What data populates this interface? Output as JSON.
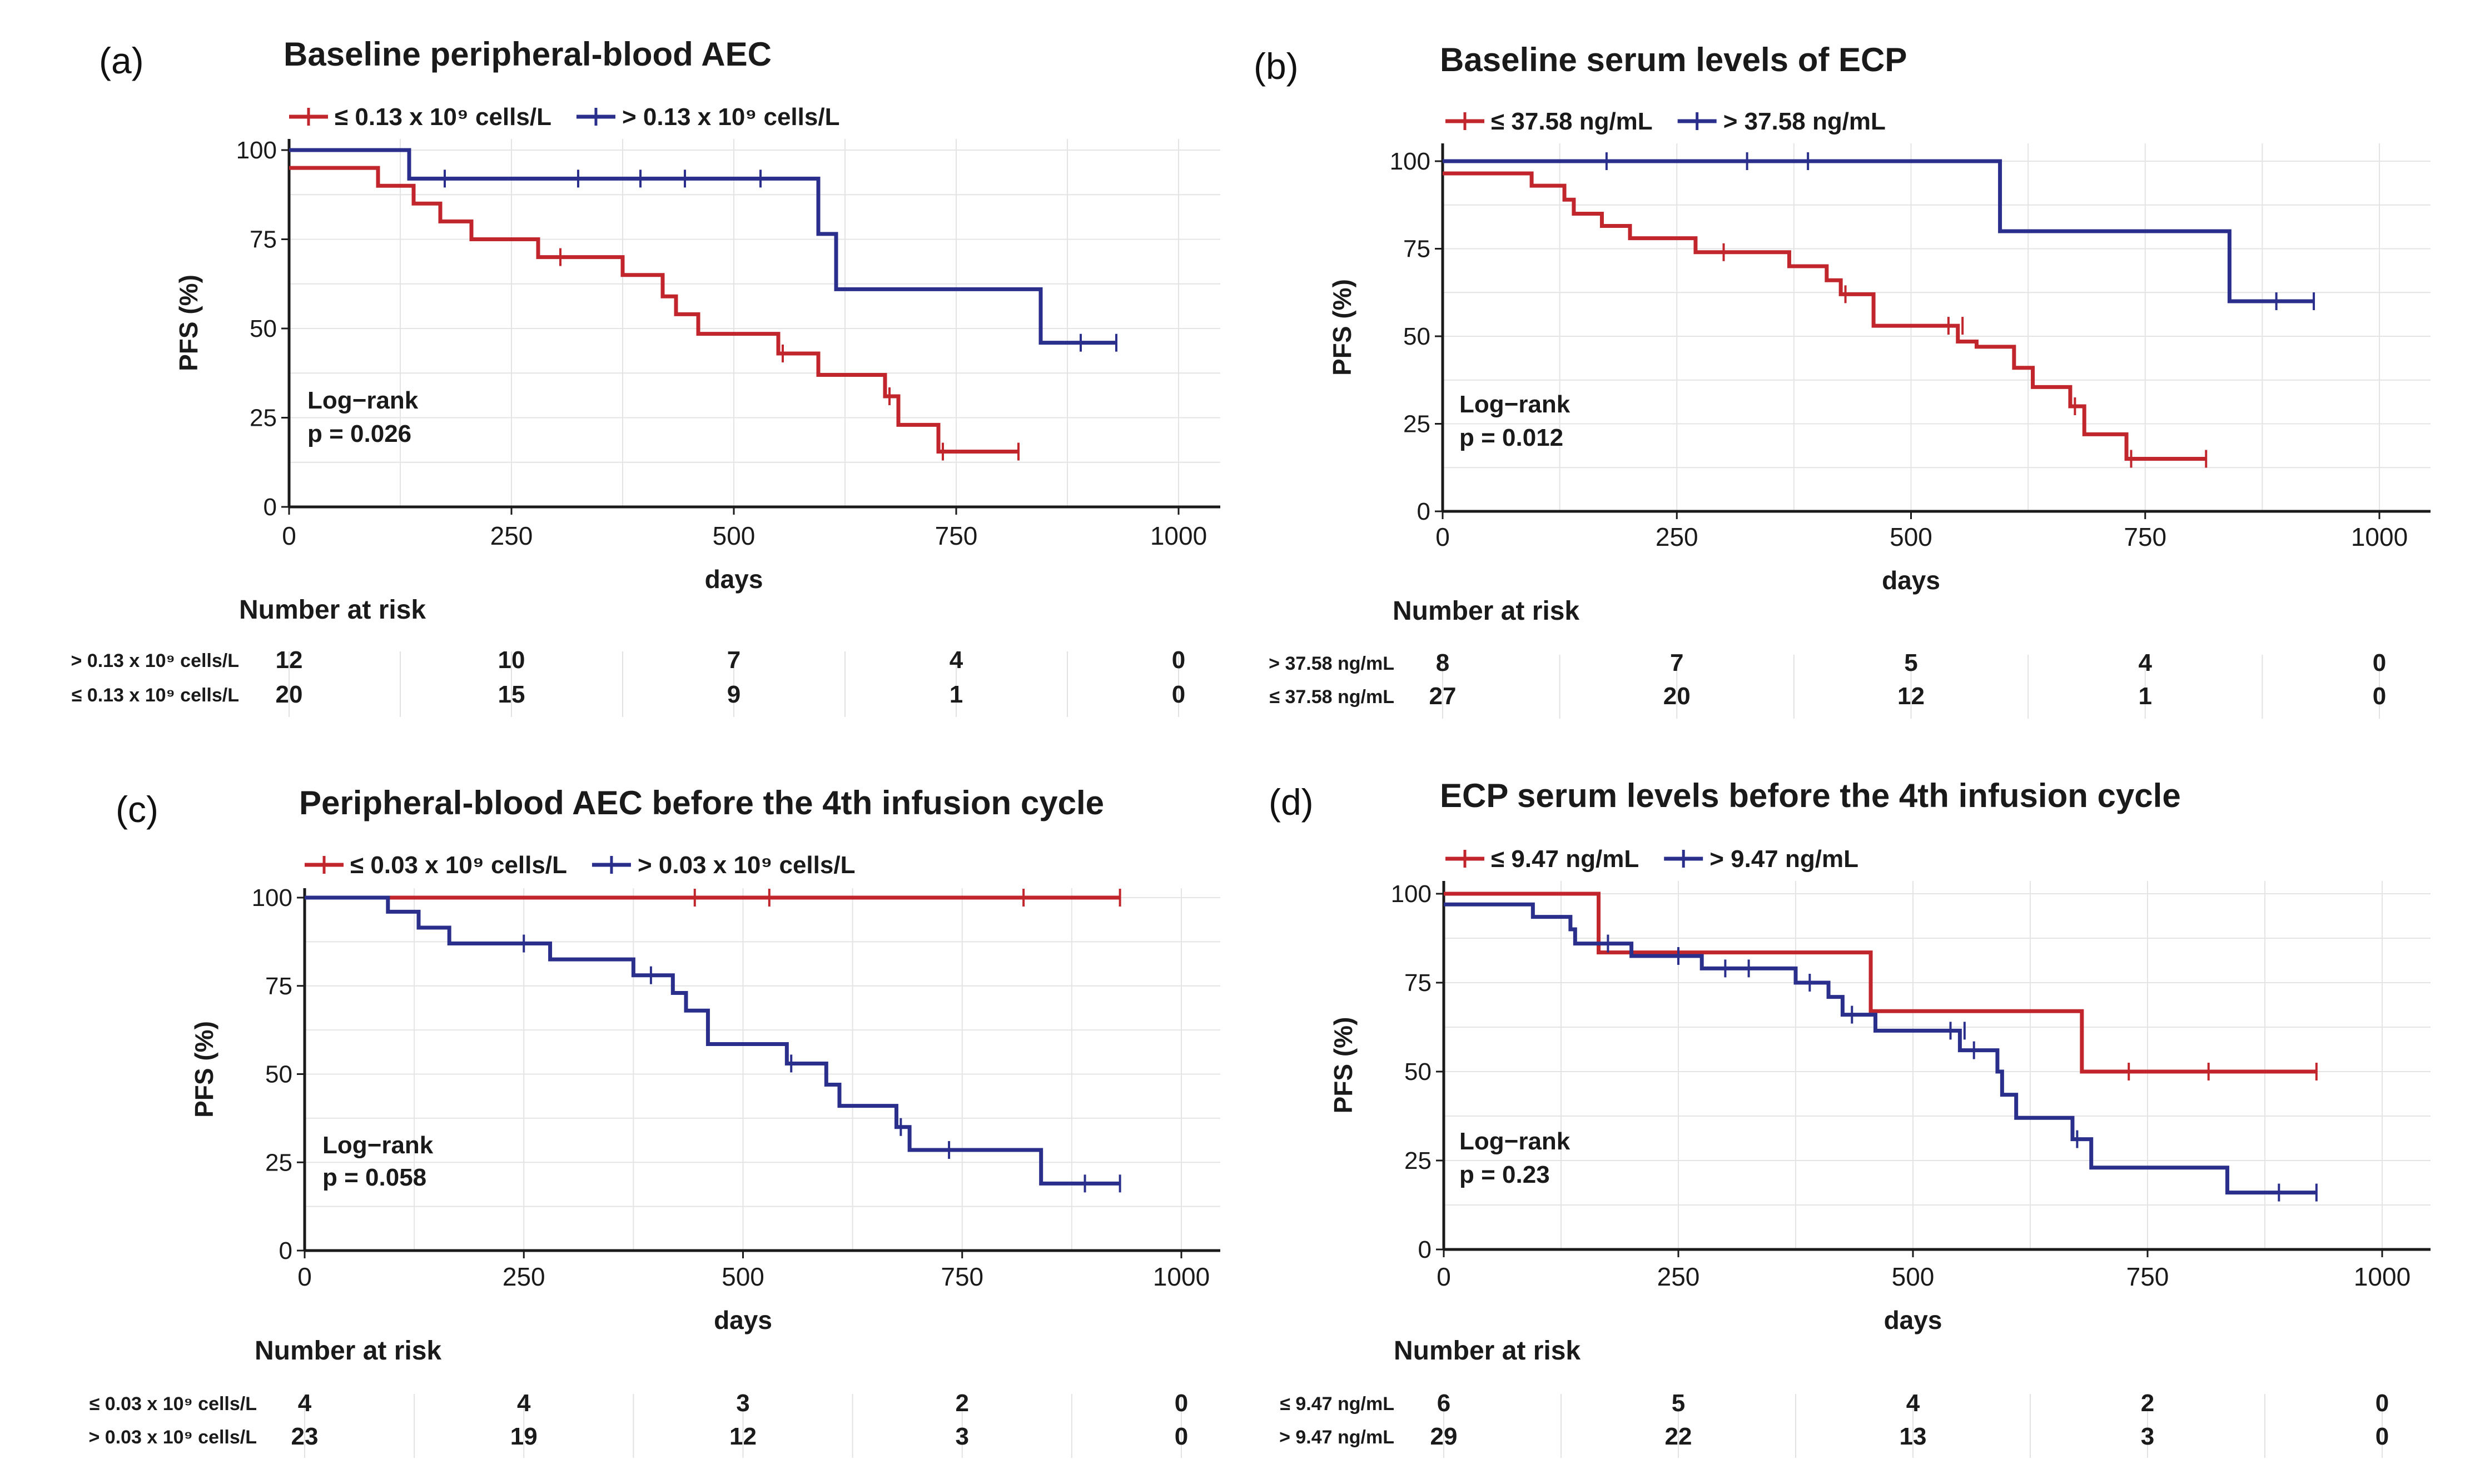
{
  "colors": {
    "red": "#c0262c",
    "blue": "#2b2f8c",
    "axis": "#1a1a1a",
    "grid": "#e4e4e4"
  },
  "chart_data": [
    {
      "type": "line",
      "label": "(a)",
      "title": "Baseline peripheral-blood AEC",
      "ylabel": "PFS (%)",
      "xlabel": "days",
      "xlim": [
        0,
        1050
      ],
      "ylim": [
        0,
        100
      ],
      "xticks": [
        0,
        250,
        500,
        750,
        1000
      ],
      "yticks": [
        0,
        25,
        50,
        75,
        100
      ],
      "ytick_labels": [
        "0",
        "25",
        "50",
        "75",
        "100"
      ],
      "xtick_labels": [
        "0",
        "250",
        "500",
        "750",
        "1000"
      ],
      "annotation": [
        "Log−rank",
        "p = 0.026"
      ],
      "risk_title": "Number at risk",
      "risk_times": [
        0,
        250,
        500,
        750,
        1000
      ],
      "series": [
        {
          "name": "≤ 0.13 x 10⁹ cells/L",
          "color": "#c0262c",
          "steps": [
            [
              0,
              95
            ],
            [
              100,
              90
            ],
            [
              140,
              85
            ],
            [
              170,
              80
            ],
            [
              205,
              75
            ],
            [
              280,
              70
            ],
            [
              375,
              65
            ],
            [
              420,
              59
            ],
            [
              435,
              54
            ],
            [
              460,
              48.5
            ],
            [
              550,
              43
            ],
            [
              595,
              37
            ],
            [
              670,
              31
            ],
            [
              685,
              23
            ],
            [
              730,
              15.5
            ],
            [
              820,
              15.5
            ]
          ],
          "censors": [
            [
              305,
              70
            ],
            [
              555,
              43
            ],
            [
              675,
              31
            ],
            [
              735,
              15.5
            ],
            [
              820,
              15.5
            ]
          ]
        },
        {
          "name": "> 0.13 x 10⁹ cells/L",
          "color": "#2b2f8c",
          "steps": [
            [
              0,
              100
            ],
            [
              135,
              92
            ],
            [
              595,
              76.5
            ],
            [
              615,
              61
            ],
            [
              845,
              46
            ],
            [
              930,
              46
            ]
          ],
          "censors": [
            [
              175,
              92
            ],
            [
              325,
              92
            ],
            [
              395,
              92
            ],
            [
              445,
              92
            ],
            [
              530,
              92
            ],
            [
              890,
              46
            ],
            [
              930,
              46
            ]
          ]
        }
      ],
      "risk_rows": [
        {
          "label": "> 0.13 x 10⁹ cells/L",
          "values": [
            "12",
            "10",
            "7",
            "4",
            "0"
          ]
        },
        {
          "label": "≤ 0.13 x 10⁹ cells/L",
          "values": [
            "20",
            "15",
            "9",
            "1",
            "0"
          ]
        }
      ]
    },
    {
      "type": "line",
      "label": "(b)",
      "title": "Baseline serum levels of ECP",
      "ylabel": "PFS (%)",
      "xlabel": "days",
      "xlim": [
        0,
        1050
      ],
      "ylim": [
        0,
        100
      ],
      "xticks": [
        0,
        250,
        500,
        750,
        1000
      ],
      "yticks": [
        0,
        25,
        50,
        75,
        100
      ],
      "ytick_labels": [
        "0",
        "25",
        "50",
        "75",
        "100"
      ],
      "xtick_labels": [
        "0",
        "250",
        "500",
        "750",
        "1000"
      ],
      "annotation": [
        "Log−rank",
        "p = 0.012"
      ],
      "risk_title": "Number at risk",
      "risk_times": [
        0,
        250,
        500,
        750,
        1000
      ],
      "series": [
        {
          "name": "≤ 37.58 ng/mL",
          "color": "#c0262c",
          "steps": [
            [
              0,
              96.5
            ],
            [
              95,
              93
            ],
            [
              130,
              89
            ],
            [
              140,
              85
            ],
            [
              170,
              81.5
            ],
            [
              200,
              78
            ],
            [
              270,
              74
            ],
            [
              370,
              70
            ],
            [
              410,
              66
            ],
            [
              425,
              62
            ],
            [
              460,
              53
            ],
            [
              550,
              48.5
            ],
            [
              570,
              47
            ],
            [
              610,
              41
            ],
            [
              630,
              35.5
            ],
            [
              670,
              30
            ],
            [
              685,
              22
            ],
            [
              730,
              15
            ],
            [
              815,
              15
            ]
          ],
          "censors": [
            [
              300,
              74
            ],
            [
              430,
              62
            ],
            [
              540,
              53
            ],
            [
              555,
              53
            ],
            [
              675,
              30
            ],
            [
              735,
              15
            ],
            [
              815,
              15
            ]
          ]
        },
        {
          "name": "> 37.58 ng/mL",
          "color": "#2b2f8c",
          "steps": [
            [
              0,
              100
            ],
            [
              595,
              80
            ],
            [
              840,
              60
            ],
            [
              930,
              60
            ]
          ],
          "censors": [
            [
              175,
              100
            ],
            [
              325,
              100
            ],
            [
              390,
              100
            ],
            [
              890,
              60
            ],
            [
              930,
              60
            ]
          ]
        }
      ],
      "risk_rows": [
        {
          "label": "> 37.58 ng/mL",
          "values": [
            "8",
            "7",
            "5",
            "4",
            "0"
          ]
        },
        {
          "label": "≤ 37.58 ng/mL",
          "values": [
            "27",
            "20",
            "12",
            "1",
            "0"
          ]
        }
      ]
    },
    {
      "type": "line",
      "label": "(c)",
      "title": "Peripheral-blood AEC before the 4th infusion cycle",
      "ylabel": "PFS (%)",
      "xlabel": "days",
      "xlim": [
        0,
        1050
      ],
      "ylim": [
        0,
        100
      ],
      "xticks": [
        0,
        250,
        500,
        750,
        1000
      ],
      "yticks": [
        0,
        25,
        50,
        75,
        100
      ],
      "ytick_labels": [
        "0",
        "25",
        "50",
        "75",
        "100"
      ],
      "xtick_labels": [
        "0",
        "250",
        "500",
        "750",
        "1000"
      ],
      "annotation": [
        "Log−rank",
        "p = 0.058"
      ],
      "risk_title": "Number at risk",
      "risk_times": [
        0,
        250,
        500,
        750,
        1000
      ],
      "series": [
        {
          "name": "≤ 0.03 x 10⁹ cells/L",
          "color": "#c0262c",
          "steps": [
            [
              0,
              100
            ],
            [
              930,
              100
            ]
          ],
          "censors": [
            [
              445,
              100
            ],
            [
              530,
              100
            ],
            [
              820,
              100
            ],
            [
              930,
              100
            ]
          ]
        },
        {
          "name": "> 0.03 x 10⁹ cells/L",
          "color": "#2b2f8c",
          "steps": [
            [
              0,
              100
            ],
            [
              95,
              96
            ],
            [
              130,
              91.5
            ],
            [
              165,
              87
            ],
            [
              280,
              82.5
            ],
            [
              375,
              78
            ],
            [
              420,
              73
            ],
            [
              435,
              68
            ],
            [
              460,
              58.5
            ],
            [
              550,
              53
            ],
            [
              595,
              47
            ],
            [
              610,
              41
            ],
            [
              675,
              35
            ],
            [
              690,
              28.5
            ],
            [
              840,
              19
            ],
            [
              930,
              19
            ]
          ],
          "censors": [
            [
              250,
              87
            ],
            [
              395,
              78
            ],
            [
              555,
              53
            ],
            [
              680,
              35
            ],
            [
              735,
              28.5
            ],
            [
              890,
              19
            ],
            [
              930,
              19
            ]
          ]
        }
      ],
      "risk_rows": [
        {
          "label": "≤ 0.03 x 10⁹ cells/L",
          "values": [
            "4",
            "4",
            "3",
            "2",
            "0"
          ]
        },
        {
          "label": "> 0.03 x 10⁹ cells/L",
          "values": [
            "23",
            "19",
            "12",
            "3",
            "0"
          ]
        }
      ]
    },
    {
      "type": "line",
      "label": "(d)",
      "title": "ECP serum levels before the 4th infusion cycle",
      "ylabel": "PFS (%)",
      "xlabel": "days",
      "xlim": [
        0,
        1050
      ],
      "ylim": [
        0,
        100
      ],
      "xticks": [
        0,
        250,
        500,
        750,
        1000
      ],
      "yticks": [
        0,
        25,
        50,
        75,
        100
      ],
      "ytick_labels": [
        "0",
        "25",
        "50",
        "75",
        "100"
      ],
      "xtick_labels": [
        "0",
        "250",
        "500",
        "750",
        "1000"
      ],
      "annotation": [
        "Log−rank",
        "p = 0.23"
      ],
      "risk_title": "Number at risk",
      "risk_times": [
        0,
        250,
        500,
        750,
        1000
      ],
      "series": [
        {
          "name": "≤ 9.47 ng/mL",
          "color": "#c0262c",
          "steps": [
            [
              0,
              100
            ],
            [
              165,
              83.5
            ],
            [
              455,
              67
            ],
            [
              680,
              50
            ],
            [
              930,
              50
            ]
          ],
          "censors": [
            [
              730,
              50
            ],
            [
              815,
              50
            ],
            [
              930,
              50
            ]
          ]
        },
        {
          "name": "> 9.47 ng/mL",
          "color": "#2b2f8c",
          "steps": [
            [
              0,
              97
            ],
            [
              95,
              93.5
            ],
            [
              135,
              90
            ],
            [
              140,
              86
            ],
            [
              200,
              82.5
            ],
            [
              275,
              79
            ],
            [
              375,
              75
            ],
            [
              410,
              71
            ],
            [
              425,
              66
            ],
            [
              460,
              61.5
            ],
            [
              550,
              56
            ],
            [
              590,
              50
            ],
            [
              595,
              43.5
            ],
            [
              610,
              37
            ],
            [
              670,
              31
            ],
            [
              690,
              23
            ],
            [
              835,
              16
            ],
            [
              930,
              16
            ]
          ],
          "censors": [
            [
              175,
              86
            ],
            [
              250,
              82.5
            ],
            [
              300,
              79
            ],
            [
              325,
              79
            ],
            [
              390,
              75
            ],
            [
              435,
              66
            ],
            [
              540,
              61.5
            ],
            [
              555,
              61.5
            ],
            [
              565,
              56
            ],
            [
              675,
              31
            ],
            [
              890,
              16
            ],
            [
              930,
              16
            ]
          ]
        }
      ],
      "risk_rows": [
        {
          "label": "≤ 9.47 ng/mL",
          "values": [
            "6",
            "5",
            "4",
            "2",
            "0"
          ]
        },
        {
          "label": "> 9.47 ng/mL",
          "values": [
            "29",
            "22",
            "13",
            "3",
            "0"
          ]
        }
      ]
    }
  ]
}
